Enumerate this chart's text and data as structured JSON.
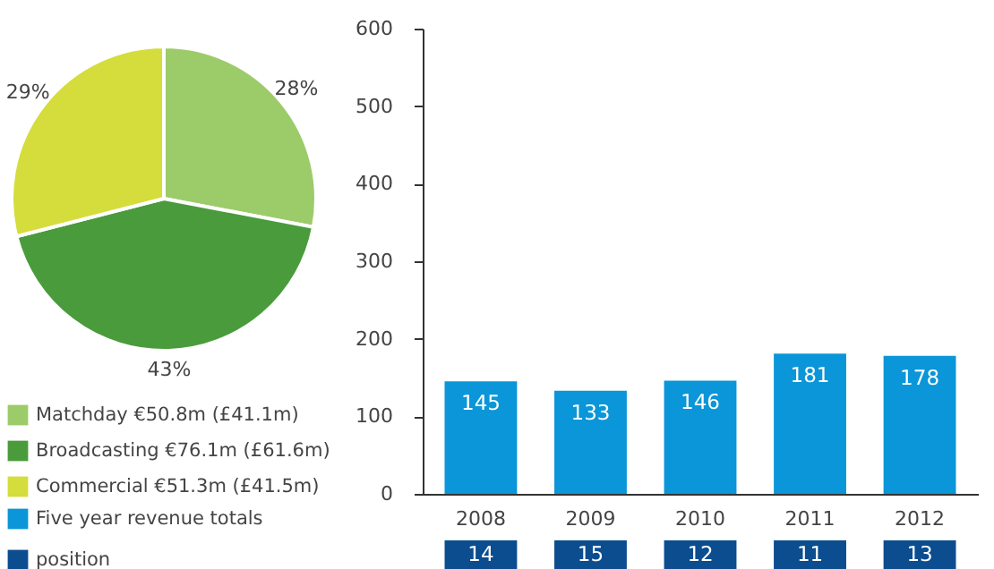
{
  "chart_data": [
    {
      "type": "pie",
      "categories": [
        "Matchday €50.8m (£41.1m)",
        "Broadcasting €76.1m (£61.6m)",
        "Commercial €51.3m (£41.5m)"
      ],
      "values": [
        28,
        43,
        29
      ],
      "value_labels": [
        "28%",
        "43%",
        "29%"
      ],
      "colors": [
        "#9ccc6a",
        "#4a9b3c",
        "#d4dd3c"
      ],
      "legend": "bottom"
    },
    {
      "type": "bar",
      "categories": [
        "2008",
        "2009",
        "2010",
        "2011",
        "2012"
      ],
      "series": [
        {
          "name": "Five year revenue totals",
          "color": "#0a96d8",
          "values": [
            145,
            133,
            146,
            181,
            178
          ]
        }
      ],
      "ylim": [
        0,
        600
      ],
      "yticks": [
        0,
        100,
        200,
        300,
        400,
        500,
        600
      ],
      "data_labels": true,
      "grid": false,
      "legend": "bottom"
    },
    {
      "type": "other",
      "categories": [
        null,
        null,
        null,
        null,
        null
      ],
      "series": [
        {
          "name": "position",
          "color": "#0b4d8f",
          "values": [
            14,
            15,
            12,
            11,
            13
          ]
        }
      ],
      "data_labels": true,
      "legend": "bottom"
    }
  ]
}
